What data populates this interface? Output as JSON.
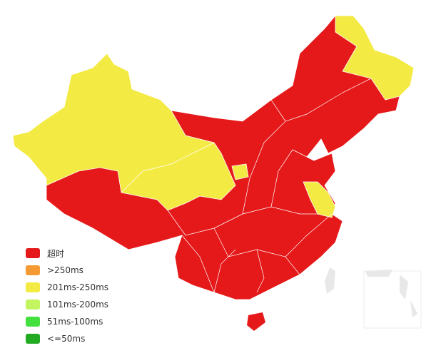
{
  "map": {
    "regions_color": {
      "timeout_regions": "#e6191a",
      "201-250ms_regions": "#f4ea44"
    },
    "south_china_sea_inset_color": "#e8e8e8"
  },
  "legend": [
    {
      "label": "超时",
      "color": "#e6191a"
    },
    {
      "label": ">250ms",
      "color": "#f59a32"
    },
    {
      "label": "201ms-250ms",
      "color": "#f4ea44"
    },
    {
      "label": "101ms-200ms",
      "color": "#c2f55f"
    },
    {
      "label": "51ms-100ms",
      "color": "#44e03f"
    },
    {
      "label": "<=50ms",
      "color": "#22aa22"
    }
  ]
}
